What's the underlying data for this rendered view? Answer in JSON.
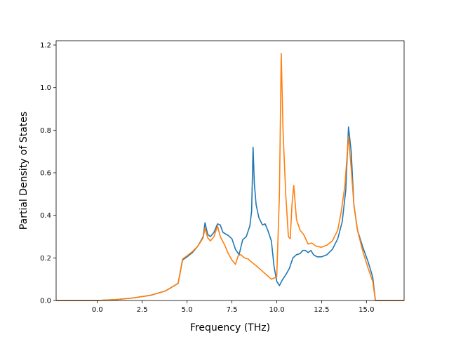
{
  "chart_data": {
    "type": "line",
    "title": "",
    "xlabel": "Frequency (THz)",
    "ylabel": "Partial Density of States",
    "xlim": [
      -2.3,
      17.1
    ],
    "ylim": [
      0,
      1.22
    ],
    "xticks": [
      0.0,
      2.5,
      5.0,
      7.5,
      10.0,
      12.5,
      15.0
    ],
    "xtick_labels": [
      "0.0",
      "2.5",
      "5.0",
      "7.5",
      "10.0",
      "12.5",
      "15.0"
    ],
    "yticks": [
      0.0,
      0.2,
      0.4,
      0.6,
      0.8,
      1.0,
      1.2
    ],
    "ytick_labels": [
      "0.0",
      "0.2",
      "0.4",
      "0.6",
      "0.8",
      "1.0",
      "1.2"
    ],
    "grid": false,
    "legend": "none",
    "series": [
      {
        "color": "#1f77b4",
        "points": [
          [
            -2.3,
            0.0
          ],
          [
            0.0,
            0.0
          ],
          [
            1.0,
            0.004
          ],
          [
            2.0,
            0.012
          ],
          [
            3.0,
            0.025
          ],
          [
            3.8,
            0.045
          ],
          [
            4.5,
            0.08
          ],
          [
            4.75,
            0.19
          ],
          [
            5.0,
            0.205
          ],
          [
            5.3,
            0.225
          ],
          [
            5.6,
            0.255
          ],
          [
            5.9,
            0.3
          ],
          [
            6.0,
            0.365
          ],
          [
            6.15,
            0.31
          ],
          [
            6.3,
            0.3
          ],
          [
            6.5,
            0.32
          ],
          [
            6.7,
            0.36
          ],
          [
            6.85,
            0.355
          ],
          [
            7.0,
            0.32
          ],
          [
            7.3,
            0.305
          ],
          [
            7.5,
            0.29
          ],
          [
            7.7,
            0.24
          ],
          [
            7.9,
            0.215
          ],
          [
            8.0,
            0.25
          ],
          [
            8.1,
            0.285
          ],
          [
            8.3,
            0.3
          ],
          [
            8.5,
            0.35
          ],
          [
            8.6,
            0.42
          ],
          [
            8.68,
            0.72
          ],
          [
            8.75,
            0.55
          ],
          [
            8.85,
            0.45
          ],
          [
            9.0,
            0.39
          ],
          [
            9.2,
            0.355
          ],
          [
            9.35,
            0.36
          ],
          [
            9.5,
            0.33
          ],
          [
            9.7,
            0.28
          ],
          [
            9.85,
            0.16
          ],
          [
            10.0,
            0.09
          ],
          [
            10.15,
            0.07
          ],
          [
            10.3,
            0.095
          ],
          [
            10.5,
            0.12
          ],
          [
            10.7,
            0.15
          ],
          [
            10.9,
            0.2
          ],
          [
            11.1,
            0.215
          ],
          [
            11.3,
            0.22
          ],
          [
            11.45,
            0.235
          ],
          [
            11.6,
            0.235
          ],
          [
            11.75,
            0.225
          ],
          [
            11.9,
            0.235
          ],
          [
            12.05,
            0.215
          ],
          [
            12.25,
            0.205
          ],
          [
            12.5,
            0.205
          ],
          [
            12.8,
            0.215
          ],
          [
            13.1,
            0.24
          ],
          [
            13.4,
            0.29
          ],
          [
            13.65,
            0.37
          ],
          [
            13.85,
            0.52
          ],
          [
            14.0,
            0.815
          ],
          [
            14.15,
            0.7
          ],
          [
            14.3,
            0.45
          ],
          [
            14.5,
            0.33
          ],
          [
            14.8,
            0.25
          ],
          [
            15.1,
            0.18
          ],
          [
            15.35,
            0.11
          ],
          [
            15.5,
            0.0
          ],
          [
            17.1,
            0.0
          ]
        ]
      },
      {
        "color": "#ff7f0e",
        "points": [
          [
            -2.3,
            0.0
          ],
          [
            0.0,
            0.0
          ],
          [
            1.0,
            0.004
          ],
          [
            2.0,
            0.012
          ],
          [
            3.0,
            0.025
          ],
          [
            3.8,
            0.045
          ],
          [
            4.5,
            0.08
          ],
          [
            4.75,
            0.195
          ],
          [
            5.0,
            0.21
          ],
          [
            5.3,
            0.23
          ],
          [
            5.6,
            0.255
          ],
          [
            5.9,
            0.295
          ],
          [
            6.0,
            0.34
          ],
          [
            6.15,
            0.295
          ],
          [
            6.3,
            0.28
          ],
          [
            6.5,
            0.3
          ],
          [
            6.7,
            0.35
          ],
          [
            6.85,
            0.3
          ],
          [
            7.1,
            0.26
          ],
          [
            7.3,
            0.22
          ],
          [
            7.5,
            0.19
          ],
          [
            7.7,
            0.17
          ],
          [
            7.85,
            0.21
          ],
          [
            8.0,
            0.215
          ],
          [
            8.2,
            0.2
          ],
          [
            8.4,
            0.195
          ],
          [
            8.6,
            0.18
          ],
          [
            8.9,
            0.16
          ],
          [
            9.3,
            0.13
          ],
          [
            9.7,
            0.1
          ],
          [
            10.0,
            0.11
          ],
          [
            10.15,
            0.5
          ],
          [
            10.25,
            1.16
          ],
          [
            10.35,
            0.8
          ],
          [
            10.5,
            0.5
          ],
          [
            10.65,
            0.3
          ],
          [
            10.75,
            0.29
          ],
          [
            10.85,
            0.45
          ],
          [
            10.95,
            0.54
          ],
          [
            11.1,
            0.38
          ],
          [
            11.3,
            0.33
          ],
          [
            11.5,
            0.31
          ],
          [
            11.75,
            0.265
          ],
          [
            11.95,
            0.27
          ],
          [
            12.2,
            0.255
          ],
          [
            12.5,
            0.25
          ],
          [
            12.8,
            0.26
          ],
          [
            13.1,
            0.28
          ],
          [
            13.4,
            0.33
          ],
          [
            13.6,
            0.42
          ],
          [
            13.8,
            0.54
          ],
          [
            14.0,
            0.77
          ],
          [
            14.15,
            0.62
          ],
          [
            14.3,
            0.45
          ],
          [
            14.5,
            0.33
          ],
          [
            14.8,
            0.23
          ],
          [
            15.1,
            0.15
          ],
          [
            15.35,
            0.09
          ],
          [
            15.5,
            0.0
          ],
          [
            17.1,
            0.0
          ]
        ]
      }
    ]
  }
}
